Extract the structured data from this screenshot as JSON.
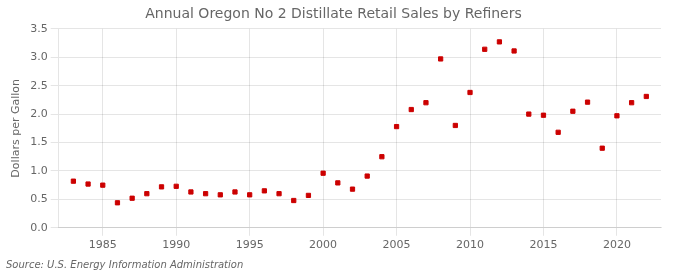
{
  "chart_data": {
    "type": "scatter",
    "title": "Annual Oregon No 2 Distillate Retail Sales by Refiners",
    "ylabel": "Dollars per Gallon",
    "annotation": "Source: U.S. Energy Information Administration",
    "x": [
      1983,
      1984,
      1985,
      1986,
      1987,
      1988,
      1989,
      1990,
      1991,
      1992,
      1993,
      1994,
      1995,
      1996,
      1997,
      1998,
      1999,
      2000,
      2001,
      2002,
      2003,
      2004,
      2005,
      2006,
      2007,
      2008,
      2009,
      2010,
      2011,
      2012,
      2013,
      2014,
      2015,
      2016,
      2017,
      2018,
      2019,
      2020,
      2021,
      2022
    ],
    "values": [
      0.82,
      0.77,
      0.75,
      0.44,
      0.52,
      0.6,
      0.72,
      0.73,
      0.63,
      0.6,
      0.58,
      0.63,
      0.58,
      0.65,
      0.6,
      0.48,
      0.57,
      0.96,
      0.79,
      0.68,
      0.91,
      1.25,
      1.78,
      2.08,
      2.2,
      2.97,
      1.8,
      2.38,
      3.14,
      3.27,
      3.11,
      2.0,
      1.98,
      1.68,
      2.05,
      2.21,
      1.4,
      1.97,
      2.2,
      2.31
    ],
    "color": "#cc0000",
    "marker": "square",
    "xlim": [
      1982,
      2023
    ],
    "xticks": [
      1985,
      1990,
      1995,
      2000,
      2005,
      2010,
      2015,
      2020
    ],
    "ylim": [
      0.0,
      3.5
    ],
    "yticks": [
      {
        "value": 0.0,
        "label": "0.0"
      },
      0.5,
      {
        "value": 1.0,
        "label": "1.0"
      },
      1.5,
      {
        "value": 2.0,
        "label": "2.0"
      },
      2.5,
      {
        "value": 3.0,
        "label": "3.0"
      },
      3.5
    ],
    "grid": true
  }
}
